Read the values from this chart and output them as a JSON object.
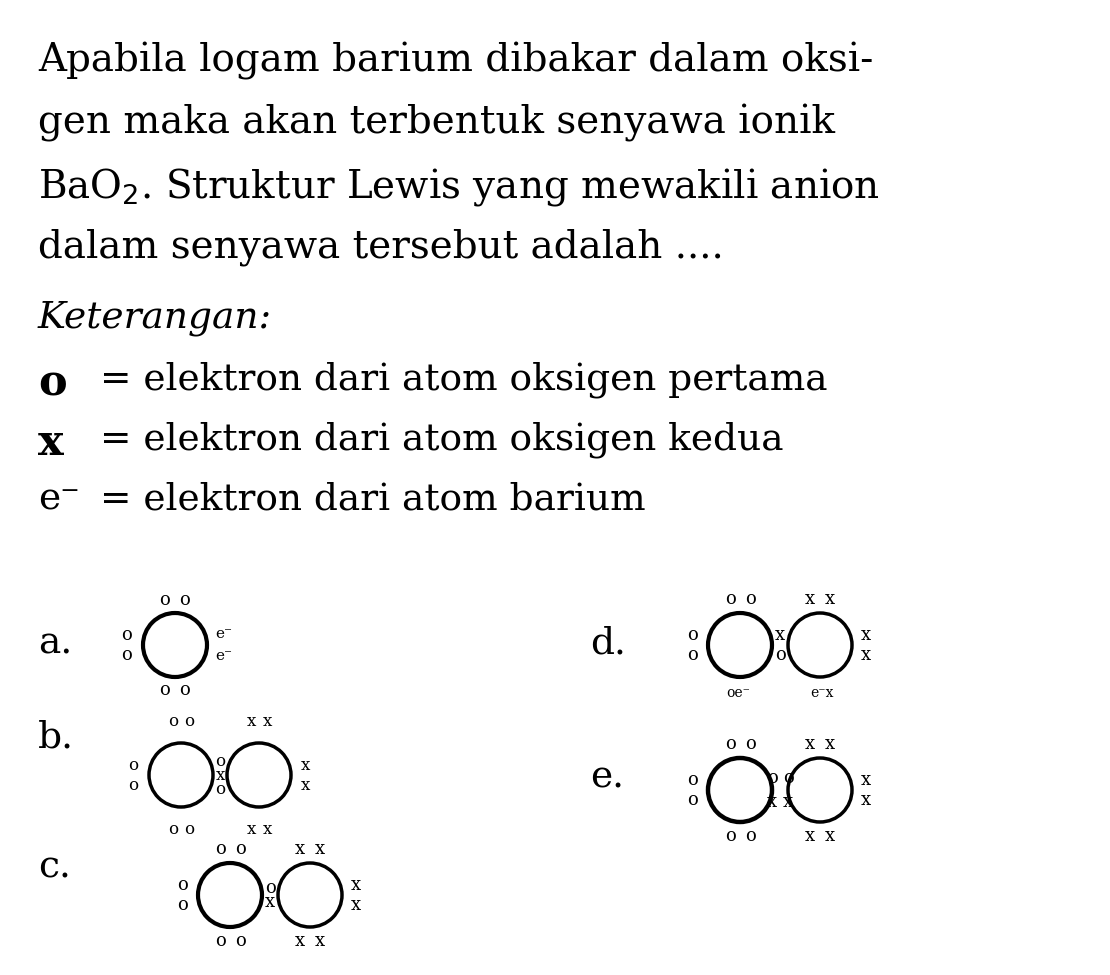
{
  "bg_color": "#ffffff",
  "text_color": "#000000",
  "figsize": [
    11.1,
    9.75
  ],
  "dpi": 100,
  "title_lines": [
    "Apabila logam barium dibakar dalam oksi-",
    "gen maka akan terbentuk senyawa ionik",
    "BaO$_2$. Struktur Lewis yang mewakili anion",
    "dalam senyawa tersebut adalah ...."
  ],
  "title_fs": 28,
  "keterangan": "Keterangan:",
  "keterangan_fs": 27,
  "legend_fs": 27,
  "choice_fs": 27,
  "diagram_circle_r": 0.042,
  "diagram_dot_fs": 13
}
